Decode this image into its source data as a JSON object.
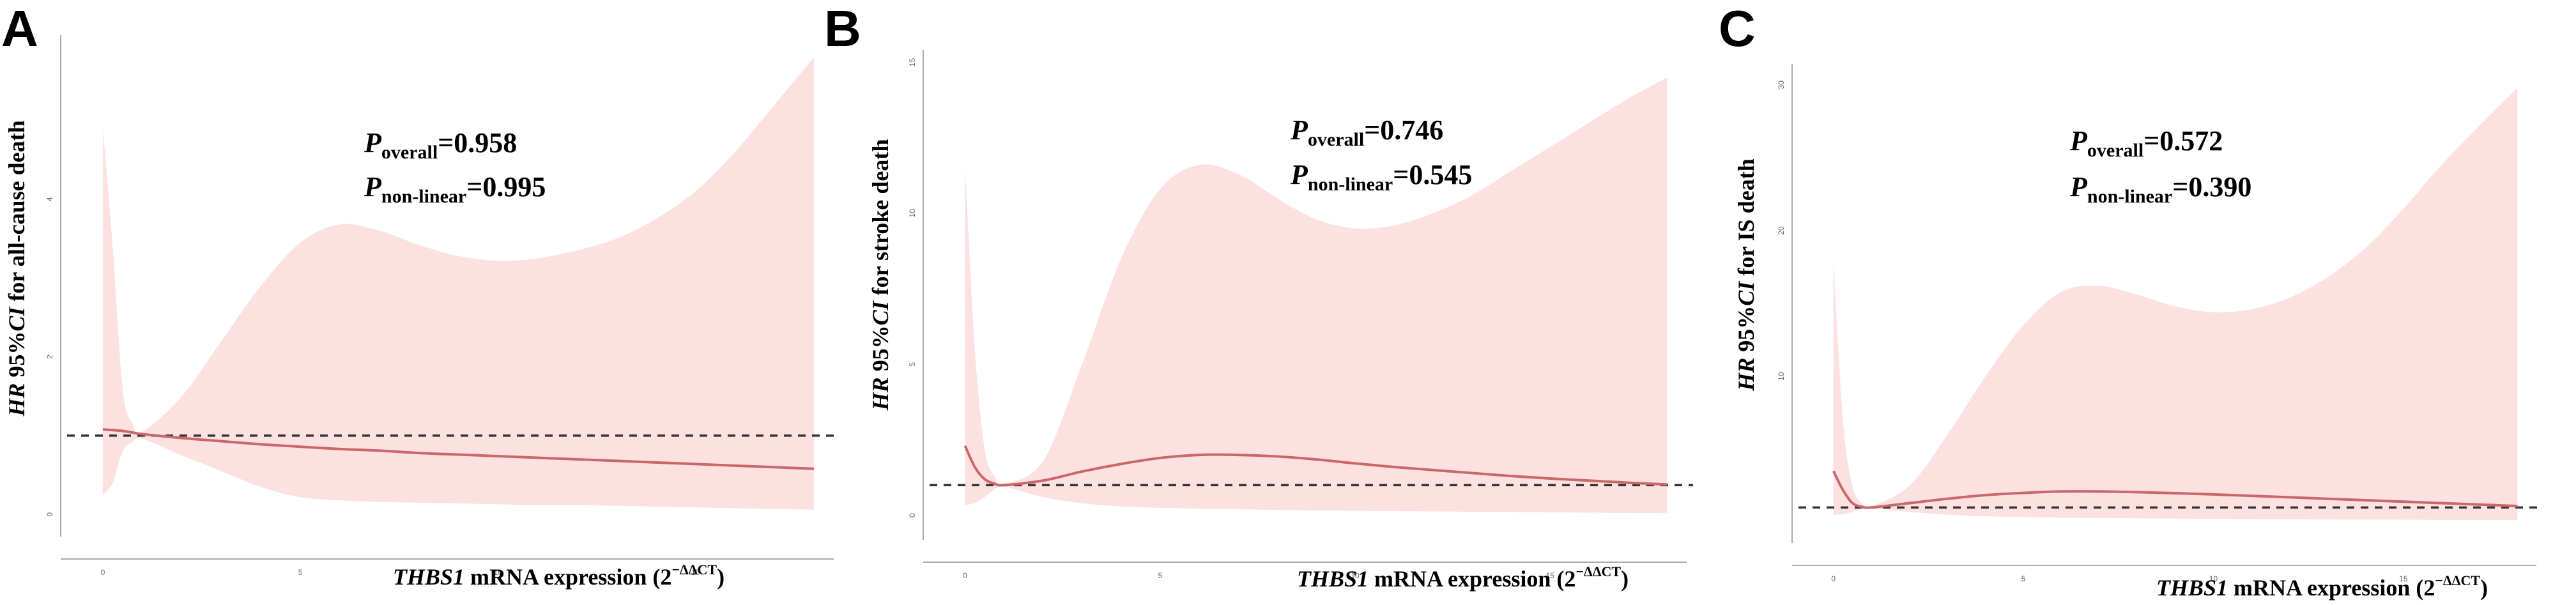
{
  "chart_data": [
    {
      "type": "line",
      "panel": "A",
      "title": "",
      "ylabel_italic": "HR",
      "ylabel_mid": " 95%",
      "ylabel_italic2": "CI",
      "ylabel_rest": " for all-cause death",
      "xlabel_italic": "THBS1",
      "xlabel_rest": " mRNA expression (2",
      "xlabel_sup": "−ΔΔCT",
      "xlabel_close": ")",
      "p_overall_label": "overall",
      "p_overall_value": "=0.958",
      "p_nonlinear_label": "non-linear",
      "p_nonlinear_value": "=0.995",
      "xlim": [
        -0.5,
        18.5
      ],
      "ylim": [
        -0.2,
        6.0
      ],
      "x_ticks": [
        0,
        5,
        10,
        15
      ],
      "y_ticks": [
        0,
        2,
        4
      ],
      "reference_y": 1,
      "x": [
        0,
        0.25,
        0.5,
        0.75,
        1,
        2,
        3,
        4,
        5,
        6,
        7,
        8,
        9,
        10,
        11,
        12,
        13,
        14,
        15,
        16,
        17,
        18
      ],
      "hr": [
        1.08,
        1.07,
        1.06,
        1.04,
        1.02,
        0.97,
        0.93,
        0.89,
        0.86,
        0.83,
        0.81,
        0.78,
        0.76,
        0.74,
        0.72,
        0.7,
        0.68,
        0.66,
        0.64,
        0.62,
        0.6,
        0.58
      ],
      "lower": [
        0.25,
        0.4,
        0.8,
        0.92,
        0.96,
        0.75,
        0.55,
        0.35,
        0.22,
        0.18,
        0.16,
        0.15,
        0.14,
        0.13,
        0.12,
        0.12,
        0.11,
        0.1,
        0.09,
        0.08,
        0.07,
        0.06
      ],
      "upper": [
        4.9,
        3.4,
        1.6,
        1.15,
        1.05,
        1.5,
        2.2,
        2.9,
        3.45,
        3.68,
        3.6,
        3.42,
        3.28,
        3.22,
        3.25,
        3.35,
        3.5,
        3.75,
        4.1,
        4.6,
        5.2,
        5.8
      ]
    },
    {
      "type": "line",
      "panel": "B",
      "title": "",
      "ylabel_italic": "HR",
      "ylabel_mid": " 95%",
      "ylabel_italic2": "CI",
      "ylabel_rest": " for stroke death",
      "xlabel_italic": "THBS1",
      "xlabel_rest": " mRNA expression (2",
      "xlabel_sup": "−ΔΔCT",
      "xlabel_close": ")",
      "p_overall_label": "overall",
      "p_overall_value": "=0.746",
      "p_nonlinear_label": "non-linear",
      "p_nonlinear_value": "=0.545",
      "xlim": [
        -0.5,
        18.5
      ],
      "ylim": [
        -0.6,
        15.2
      ],
      "x_ticks": [
        0,
        5,
        10,
        15
      ],
      "y_ticks": [
        0,
        5,
        10,
        15
      ],
      "reference_y": 1,
      "x": [
        0,
        0.25,
        0.5,
        0.75,
        1,
        2,
        3,
        4,
        5,
        6,
        7,
        8,
        9,
        10,
        11,
        12,
        13,
        14,
        15,
        16,
        17,
        18
      ],
      "hr": [
        2.3,
        1.6,
        1.2,
        1.05,
        1.0,
        1.15,
        1.45,
        1.7,
        1.9,
        2.0,
        2.0,
        1.95,
        1.85,
        1.72,
        1.6,
        1.5,
        1.4,
        1.3,
        1.22,
        1.15,
        1.08,
        1.02
      ],
      "lower": [
        0.35,
        0.4,
        0.6,
        0.85,
        0.95,
        0.6,
        0.4,
        0.3,
        0.25,
        0.22,
        0.2,
        0.18,
        0.16,
        0.15,
        0.14,
        0.13,
        0.12,
        0.11,
        0.1,
        0.09,
        0.08,
        0.07
      ],
      "upper": [
        11.5,
        5.5,
        2.2,
        1.3,
        1.05,
        1.8,
        5.0,
        8.5,
        10.8,
        11.6,
        11.3,
        10.5,
        9.8,
        9.5,
        9.6,
        10.0,
        10.6,
        11.4,
        12.2,
        13.0,
        13.8,
        14.5
      ]
    },
    {
      "type": "line",
      "panel": "C",
      "title": "",
      "ylabel_italic": "HR",
      "ylabel_mid": " 95%",
      "ylabel_italic2": "CI",
      "ylabel_rest": " for  IS death",
      "xlabel_italic": "THBS1",
      "xlabel_rest": " mRNA expression (2",
      "xlabel_sup": "−ΔΔCT",
      "xlabel_close": ")",
      "p_overall_label": "overall",
      "p_overall_value": "=0.572",
      "p_nonlinear_label": "non-linear",
      "p_nonlinear_value": "=0.390",
      "xlim": [
        -0.5,
        18.5
      ],
      "ylim": [
        -1.0,
        31.0
      ],
      "x_ticks": [
        0,
        5,
        10,
        15
      ],
      "y_ticks": [
        10,
        20,
        30
      ],
      "reference_y": 1,
      "x": [
        0,
        0.25,
        0.5,
        0.75,
        1,
        2,
        3,
        4,
        5,
        6,
        7,
        8,
        9,
        10,
        11,
        12,
        13,
        14,
        15,
        16,
        17,
        18
      ],
      "hr": [
        3.5,
        2.2,
        1.3,
        1.05,
        1.0,
        1.3,
        1.6,
        1.85,
        2.0,
        2.1,
        2.1,
        2.05,
        1.98,
        1.9,
        1.8,
        1.7,
        1.6,
        1.5,
        1.4,
        1.3,
        1.2,
        1.1
      ],
      "lower": [
        0.5,
        0.55,
        0.7,
        0.9,
        0.95,
        0.7,
        0.5,
        0.4,
        0.35,
        0.3,
        0.28,
        0.26,
        0.24,
        0.22,
        0.2,
        0.19,
        0.18,
        0.17,
        0.16,
        0.15,
        0.14,
        0.13
      ],
      "upper": [
        18.0,
        7.0,
        2.5,
        1.3,
        1.1,
        2.5,
        6.0,
        10.0,
        13.5,
        15.8,
        16.2,
        15.6,
        14.8,
        14.4,
        14.6,
        15.4,
        16.8,
        18.8,
        21.5,
        24.5,
        27.2,
        29.8
      ]
    }
  ]
}
